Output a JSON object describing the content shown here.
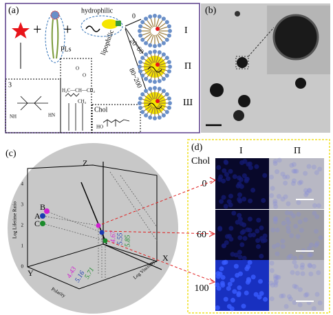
{
  "panel_a": {
    "label": "(a)",
    "hydrophilic": "hydrophilic",
    "pls": "PLs",
    "lipophilic": "lipophilic",
    "compound": "3",
    "chol": "Chol",
    "range_0": "0",
    "range_1": "20~60",
    "range_2": "80~200",
    "types": [
      "I",
      "Π",
      "Ш"
    ],
    "chem": [
      "H₂C—CH—CH₂",
      "O",
      "O",
      "CH₃",
      "HO",
      "NH",
      "HN"
    ]
  },
  "panel_b": {
    "label": "(b)"
  },
  "panel_c": {
    "label": "(c)",
    "axes": {
      "z": "Z",
      "x": "X",
      "y": "Y"
    },
    "z_title": "Log Lifetime Ratio",
    "y_title": "Polarity",
    "x_title": "Log Viscosity",
    "z_ticks": [
      "0",
      "1",
      "2",
      "3",
      "4"
    ],
    "points": [
      "A",
      "B",
      "C"
    ],
    "values_1": [
      "4.43",
      "5.16",
      "5.71"
    ],
    "values_2": [
      "4.67",
      "5.55",
      "5.85"
    ]
  },
  "panel_d": {
    "label": "(d)",
    "chol": "Chol",
    "columns": [
      "I",
      "Π"
    ],
    "rows": [
      "0",
      "60",
      "100"
    ]
  }
}
